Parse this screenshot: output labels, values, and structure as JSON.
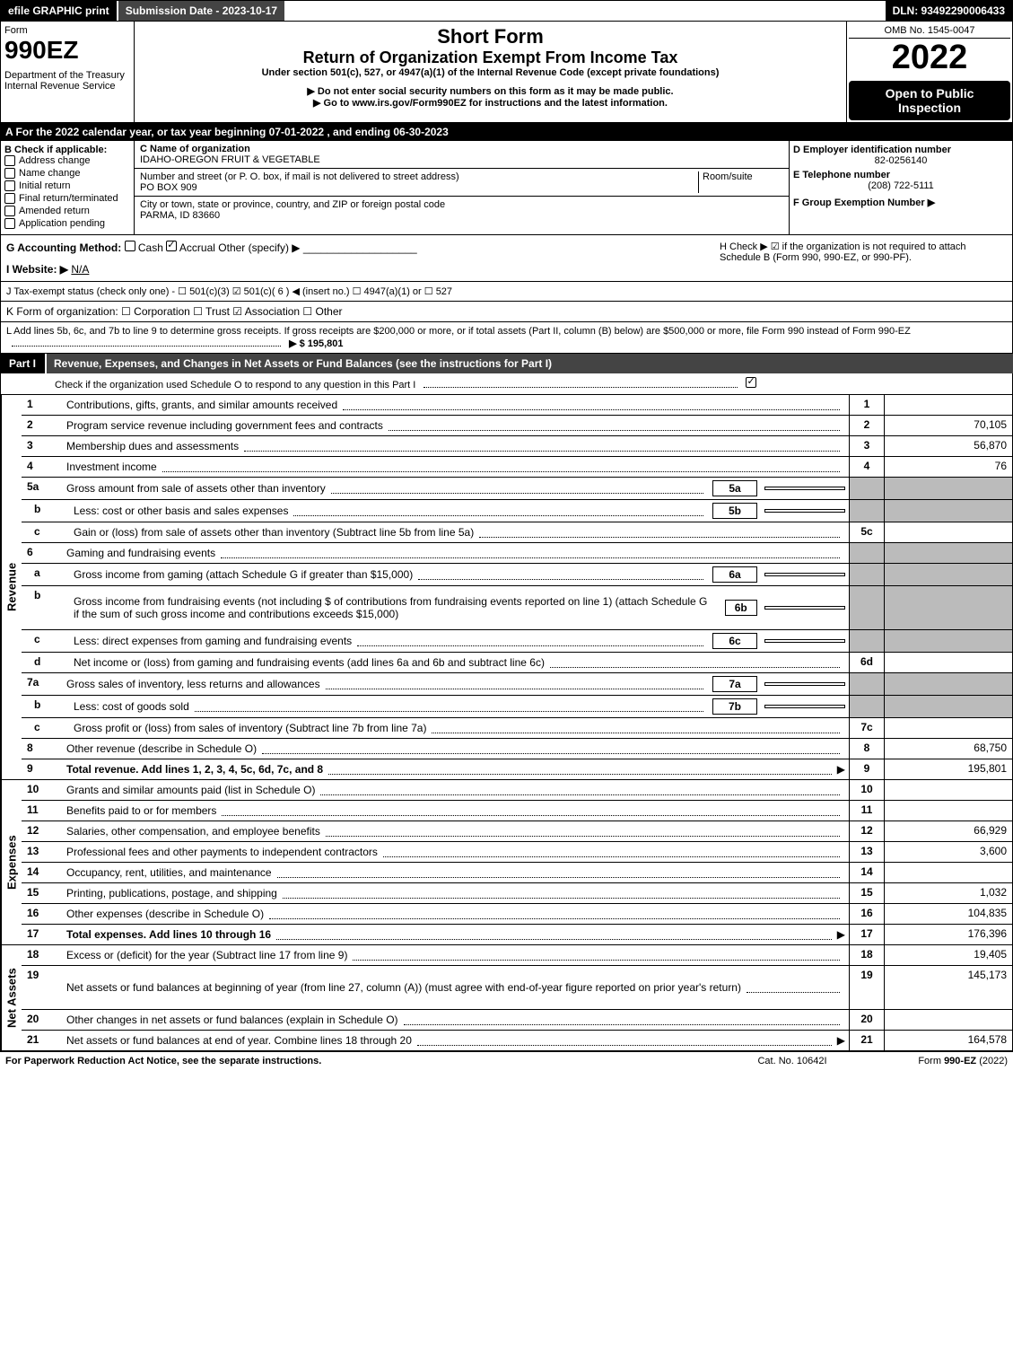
{
  "topbar": {
    "efile": "efile GRAPHIC print",
    "submission": "Submission Date - 2023-10-17",
    "dln": "DLN: 93492290006433"
  },
  "header": {
    "form_label": "Form",
    "form_number": "990EZ",
    "dept1": "Department of the Treasury",
    "dept2": "Internal Revenue Service",
    "short_form": "Short Form",
    "return_title": "Return of Organization Exempt From Income Tax",
    "under": "Under section 501(c), 527, or 4947(a)(1) of the Internal Revenue Code (except private foundations)",
    "note1": "▶ Do not enter social security numbers on this form as it may be made public.",
    "note2": "▶ Go to www.irs.gov/Form990EZ for instructions and the latest information.",
    "omb": "OMB No. 1545-0047",
    "year": "2022",
    "open_public": "Open to Public Inspection"
  },
  "section_a": "A  For the 2022 calendar year, or tax year beginning 07-01-2022 , and ending 06-30-2023",
  "b": {
    "label": "B  Check if applicable:",
    "items": [
      "Address change",
      "Name change",
      "Initial return",
      "Final return/terminated",
      "Amended return",
      "Application pending"
    ]
  },
  "c": {
    "c_label": "C Name of organization",
    "org_name": "IDAHO-OREGON FRUIT & VEGETABLE",
    "addr_label": "Number and street (or P. O. box, if mail is not delivered to street address)",
    "room_label": "Room/suite",
    "addr": "PO BOX 909",
    "city_label": "City or town, state or province, country, and ZIP or foreign postal code",
    "city": "PARMA, ID  83660"
  },
  "def": {
    "d_label": "D Employer identification number",
    "ein": "82-0256140",
    "e_label": "E Telephone number",
    "phone": "(208) 722-5111",
    "f_label": "F Group Exemption Number  ▶"
  },
  "g": {
    "label": "G Accounting Method:",
    "cash": "Cash",
    "accrual": "Accrual",
    "other": "Other (specify) ▶"
  },
  "h": {
    "text": "H  Check ▶  ☑  if the organization is not required to attach Schedule B (Form 990, 990-EZ, or 990-PF)."
  },
  "i": {
    "label": "I Website: ▶",
    "value": "N/A"
  },
  "j": "J Tax-exempt status (check only one) -  ☐ 501(c)(3)  ☑ 501(c)( 6 ) ◀ (insert no.)  ☐ 4947(a)(1) or  ☐ 527",
  "k": "K Form of organization:   ☐ Corporation   ☐ Trust   ☑ Association   ☐ Other",
  "l": {
    "text": "L Add lines 5b, 6c, and 7b to line 9 to determine gross receipts. If gross receipts are $200,000 or more, or if total assets (Part II, column (B) below) are $500,000 or more, file Form 990 instead of Form 990-EZ",
    "amount": "▶ $ 195,801"
  },
  "part1": {
    "label": "Part I",
    "title": "Revenue, Expenses, and Changes in Net Assets or Fund Balances (see the instructions for Part I)",
    "check_line": "Check if the organization used Schedule O to respond to any question in this Part I"
  },
  "side_labels": {
    "revenue": "Revenue",
    "expenses": "Expenses",
    "netassets": "Net Assets"
  },
  "lines": [
    {
      "n": "1",
      "d": "Contributions, gifts, grants, and similar amounts received",
      "c": "1",
      "a": ""
    },
    {
      "n": "2",
      "d": "Program service revenue including government fees and contracts",
      "c": "2",
      "a": "70,105"
    },
    {
      "n": "3",
      "d": "Membership dues and assessments",
      "c": "3",
      "a": "56,870"
    },
    {
      "n": "4",
      "d": "Investment income",
      "c": "4",
      "a": "76"
    },
    {
      "n": "5a",
      "d": "Gross amount from sale of assets other than inventory",
      "ib": "5a",
      "iv": "",
      "shaded": true
    },
    {
      "n": "b",
      "sub": true,
      "d": "Less: cost or other basis and sales expenses",
      "ib": "5b",
      "iv": "",
      "shaded": true
    },
    {
      "n": "c",
      "sub": true,
      "d": "Gain or (loss) from sale of assets other than inventory (Subtract line 5b from line 5a)",
      "c": "5c",
      "a": ""
    },
    {
      "n": "6",
      "d": "Gaming and fundraising events",
      "shaded": true,
      "nocol": true
    },
    {
      "n": "a",
      "sub": true,
      "d": "Gross income from gaming (attach Schedule G if greater than $15,000)",
      "ib": "6a",
      "iv": "",
      "shaded": true
    },
    {
      "n": "b",
      "sub": true,
      "d": "Gross income from fundraising events (not including $               of contributions from fundraising events reported on line 1) (attach Schedule G if the sum of such gross income and contributions exceeds $15,000)",
      "ib": "6b",
      "iv": "",
      "shaded": true,
      "tall": true
    },
    {
      "n": "c",
      "sub": true,
      "d": "Less: direct expenses from gaming and fundraising events",
      "ib": "6c",
      "iv": "",
      "shaded": true
    },
    {
      "n": "d",
      "sub": true,
      "d": "Net income or (loss) from gaming and fundraising events (add lines 6a and 6b and subtract line 6c)",
      "c": "6d",
      "a": ""
    },
    {
      "n": "7a",
      "d": "Gross sales of inventory, less returns and allowances",
      "ib": "7a",
      "iv": "",
      "shaded": true
    },
    {
      "n": "b",
      "sub": true,
      "d": "Less: cost of goods sold",
      "ib": "7b",
      "iv": "",
      "shaded": true
    },
    {
      "n": "c",
      "sub": true,
      "d": "Gross profit or (loss) from sales of inventory (Subtract line 7b from line 7a)",
      "c": "7c",
      "a": ""
    },
    {
      "n": "8",
      "d": "Other revenue (describe in Schedule O)",
      "c": "8",
      "a": "68,750"
    },
    {
      "n": "9",
      "d": "Total revenue. Add lines 1, 2, 3, 4, 5c, 6d, 7c, and 8",
      "c": "9",
      "a": "195,801",
      "bold": true,
      "arrow": true
    }
  ],
  "exp_lines": [
    {
      "n": "10",
      "d": "Grants and similar amounts paid (list in Schedule O)",
      "c": "10",
      "a": ""
    },
    {
      "n": "11",
      "d": "Benefits paid to or for members",
      "c": "11",
      "a": ""
    },
    {
      "n": "12",
      "d": "Salaries, other compensation, and employee benefits",
      "c": "12",
      "a": "66,929"
    },
    {
      "n": "13",
      "d": "Professional fees and other payments to independent contractors",
      "c": "13",
      "a": "3,600"
    },
    {
      "n": "14",
      "d": "Occupancy, rent, utilities, and maintenance",
      "c": "14",
      "a": ""
    },
    {
      "n": "15",
      "d": "Printing, publications, postage, and shipping",
      "c": "15",
      "a": "1,032"
    },
    {
      "n": "16",
      "d": "Other expenses (describe in Schedule O)",
      "c": "16",
      "a": "104,835"
    },
    {
      "n": "17",
      "d": "Total expenses. Add lines 10 through 16",
      "c": "17",
      "a": "176,396",
      "bold": true,
      "arrow": true
    }
  ],
  "na_lines": [
    {
      "n": "18",
      "d": "Excess or (deficit) for the year (Subtract line 17 from line 9)",
      "c": "18",
      "a": "19,405"
    },
    {
      "n": "19",
      "d": "Net assets or fund balances at beginning of year (from line 27, column (A)) (must agree with end-of-year figure reported on prior year's return)",
      "c": "19",
      "a": "145,173",
      "tall": true
    },
    {
      "n": "20",
      "d": "Other changes in net assets or fund balances (explain in Schedule O)",
      "c": "20",
      "a": ""
    },
    {
      "n": "21",
      "d": "Net assets or fund balances at end of year. Combine lines 18 through 20",
      "c": "21",
      "a": "164,578",
      "arrow": true
    }
  ],
  "footer": {
    "left": "For Paperwork Reduction Act Notice, see the separate instructions.",
    "mid": "Cat. No. 10642I",
    "right": "Form 990-EZ (2022)"
  }
}
